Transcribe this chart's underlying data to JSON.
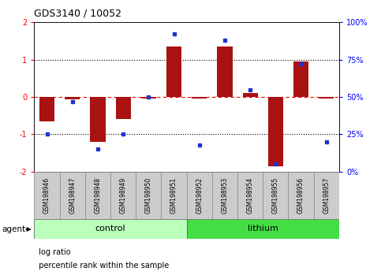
{
  "title": "GDS3140 / 10052",
  "samples": [
    "GSM198946",
    "GSM198947",
    "GSM198948",
    "GSM198949",
    "GSM198950",
    "GSM198951",
    "GSM198952",
    "GSM198953",
    "GSM198954",
    "GSM198955",
    "GSM198956",
    "GSM198957"
  ],
  "log_ratio": [
    -0.65,
    -0.07,
    -1.2,
    -0.6,
    -0.05,
    1.35,
    -0.05,
    1.35,
    0.1,
    -1.85,
    0.95,
    -0.05
  ],
  "percentile": [
    25,
    47,
    15,
    25,
    50,
    92,
    18,
    88,
    55,
    5,
    72,
    20
  ],
  "groups": [
    {
      "label": "control",
      "start": 0,
      "end": 5,
      "color": "#bbffbb"
    },
    {
      "label": "lithium",
      "start": 6,
      "end": 11,
      "color": "#44dd44"
    }
  ],
  "bar_color": "#aa1111",
  "dot_color": "#2233cc",
  "ylim_left": [
    -2,
    2
  ],
  "ylim_right": [
    0,
    100
  ],
  "yticks_left": [
    -2,
    -1,
    0,
    1,
    2
  ],
  "ytick_labels_left": [
    "-2",
    "-1",
    "0",
    "1",
    "2"
  ],
  "yticks_right": [
    0,
    25,
    50,
    75,
    100
  ],
  "ytick_labels_right": [
    "0%",
    "25%",
    "50%",
    "75%",
    "100%"
  ],
  "plot_bg": "#ffffff",
  "agent_label": "agent",
  "legend_log_ratio": "log ratio",
  "legend_percentile": "percentile rank within the sample",
  "label_bg": "#cccccc",
  "control_color": "#bbffbb",
  "lithium_color": "#44dd44"
}
